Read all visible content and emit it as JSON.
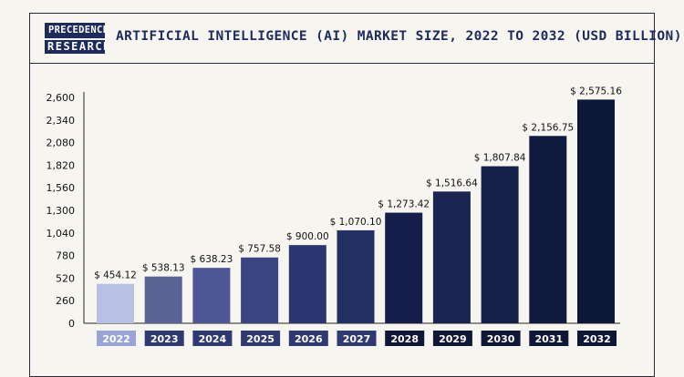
{
  "header": {
    "logo_line1": "PRECEDENCE",
    "logo_line2": "RESEARCH",
    "title": "ARTIFICIAL INTELLIGENCE (AI) MARKET SIZE, 2022 TO 2032 (USD BILLION)"
  },
  "chart_data": {
    "type": "bar",
    "title": "ARTIFICIAL INTELLIGENCE (AI) MARKET SIZE, 2022 TO 2032 (USD BILLION)",
    "categories": [
      "2022",
      "2023",
      "2024",
      "2025",
      "2026",
      "2027",
      "2028",
      "2029",
      "2030",
      "2031",
      "2032"
    ],
    "values": [
      454.12,
      538.13,
      638.23,
      757.58,
      900.0,
      1070.1,
      1273.42,
      1516.64,
      1807.84,
      2156.75,
      2575.16
    ],
    "data_labels": [
      "$ 454.12",
      "$ 538.13",
      "$ 638.23",
      "$ 757.58",
      "$ 900.00",
      "$ 1,070.10",
      "$ 1,273.42",
      "$ 1,516.64",
      "$ 1,807.84",
      "$ 2,156.75",
      "$ 2,575.16"
    ],
    "yticks": [
      "0",
      "260",
      "520",
      "780",
      "1,040",
      "1,300",
      "1,560",
      "1,820",
      "2,080",
      "2,340",
      "2,600"
    ],
    "ylim": [
      0,
      2600
    ],
    "grid": false,
    "colors": [
      "#b8c0e6",
      "#5a6396",
      "#4d5795",
      "#3a4482",
      "#2b3670",
      "#223063",
      "#151e4a",
      "#1b2551",
      "#152048",
      "#101a3f",
      "#0d1738"
    ],
    "category_label_colors": [
      "#9aa3d6",
      "#2f3a73",
      "#2f3a73",
      "#2f3a73",
      "#2f3a73",
      "#2f3a73",
      "#0f1737",
      "#0f1737",
      "#0f1737",
      "#0f1737",
      "#0f1737"
    ]
  }
}
